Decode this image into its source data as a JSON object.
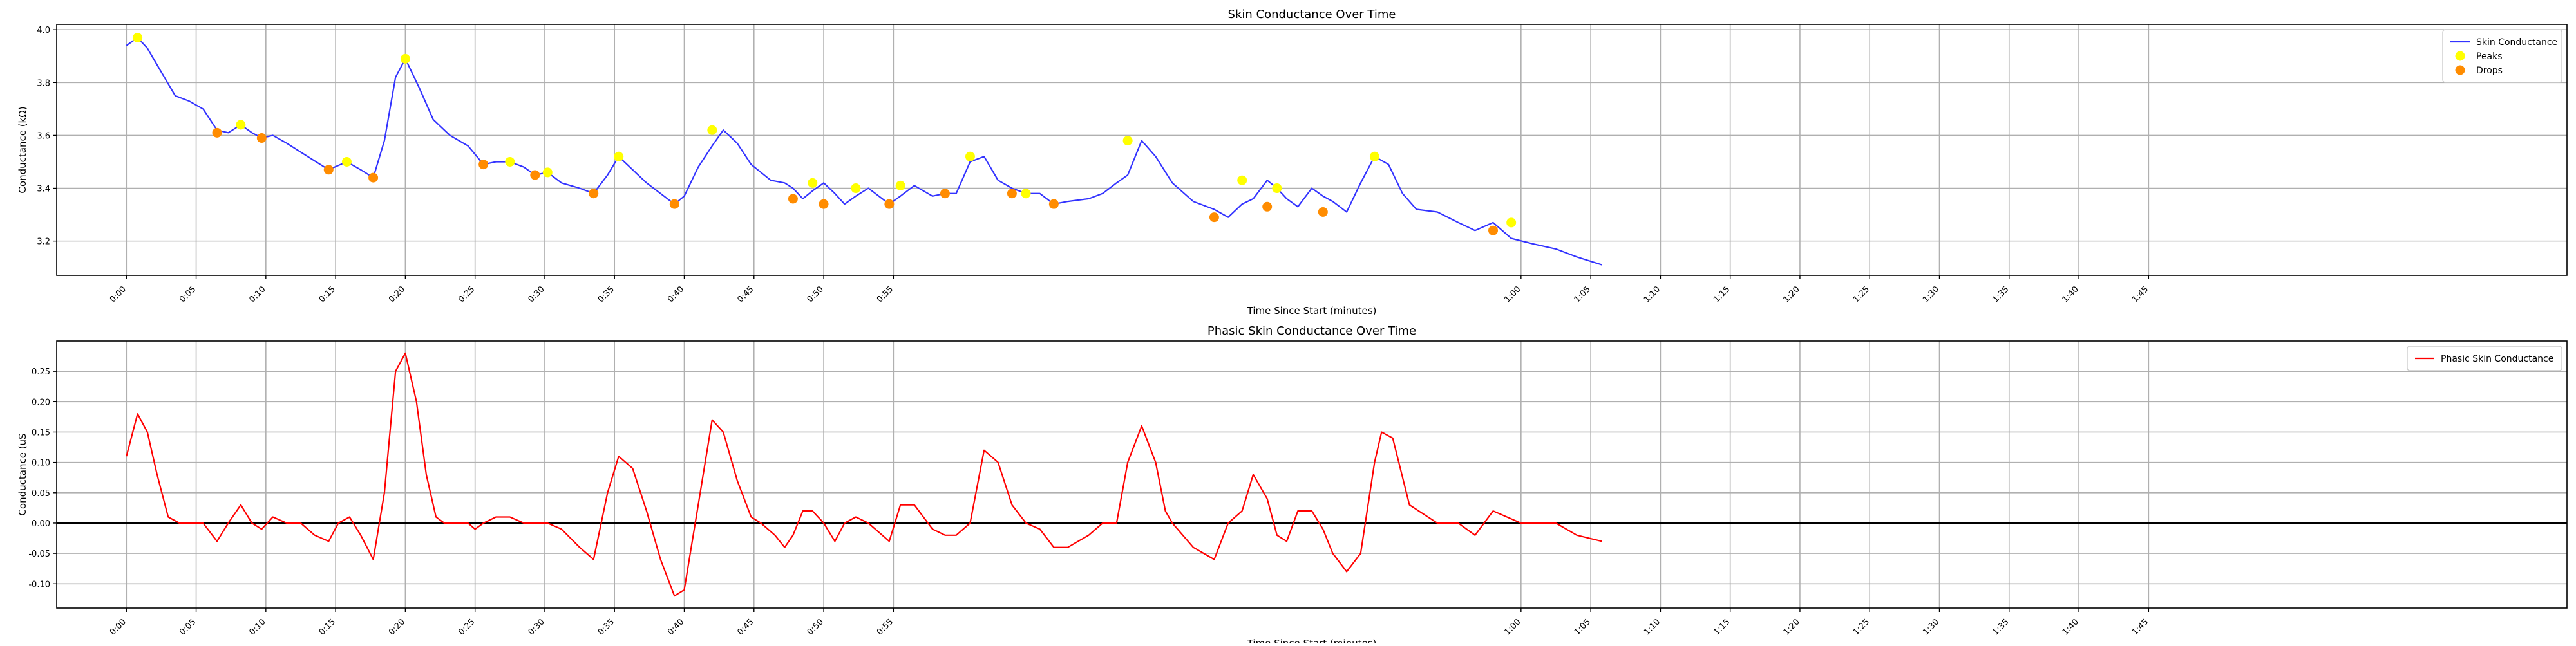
{
  "figure": {
    "background": "#ffffff"
  },
  "chart_data": [
    {
      "type": "line",
      "title": "Skin Conductance Over Time",
      "xlabel": "Time Since Start (minutes)",
      "ylabel": "Conductance (kΩ)",
      "xlim": [
        -0.05,
        1.75
      ],
      "ylim": [
        3.07,
        4.02
      ],
      "xticks": [
        0,
        0.05,
        0.1,
        0.15,
        0.2,
        0.25,
        0.3,
        0.35,
        0.4,
        0.45,
        0.5,
        0.55,
        1.0,
        1.05,
        1.1,
        1.15,
        1.2,
        1.25,
        1.3,
        1.35,
        1.4,
        1.45
      ],
      "xticklabels": [
        "0:00",
        "0:05",
        "0:10",
        "0:15",
        "0:20",
        "0:25",
        "0:30",
        "0:35",
        "0:40",
        "0:45",
        "0:50",
        "0:55",
        "1:00",
        "1:05",
        "1:10",
        "1:15",
        "1:20",
        "1:25",
        "1:30",
        "1:35",
        "1:40",
        "1:45"
      ],
      "yticks": [
        3.2,
        3.4,
        3.6,
        3.8,
        4.0
      ],
      "yticklabels": [
        "3.2",
        "3.4",
        "3.6",
        "3.8",
        "4.0"
      ],
      "grid": true,
      "legend_position": "upper right",
      "series": [
        {
          "name": "Skin Conductance",
          "kind": "line",
          "color": "#3333ff",
          "x": [
            0.0,
            0.008,
            0.015,
            0.025,
            0.035,
            0.045,
            0.055,
            0.065,
            0.073,
            0.082,
            0.09,
            0.097,
            0.105,
            0.115,
            0.13,
            0.145,
            0.158,
            0.168,
            0.177,
            0.185,
            0.193,
            0.2,
            0.21,
            0.22,
            0.232,
            0.245,
            0.256,
            0.265,
            0.275,
            0.285,
            0.293,
            0.302,
            0.312,
            0.325,
            0.335,
            0.345,
            0.353,
            0.363,
            0.373,
            0.383,
            0.393,
            0.4,
            0.41,
            0.42,
            0.428,
            0.438,
            0.448,
            0.462,
            0.472,
            0.478,
            0.485,
            0.492,
            0.5,
            0.508,
            0.515,
            0.523,
            0.532,
            0.542,
            0.547,
            0.555,
            0.565,
            0.578,
            0.587,
            0.595,
            0.605,
            0.615,
            0.625,
            0.635,
            0.645,
            0.655,
            0.665,
            0.675,
            0.69,
            0.7,
            0.71,
            0.718,
            0.728,
            0.738,
            0.75,
            0.765,
            0.78,
            0.79,
            0.8,
            0.808,
            0.818,
            0.825,
            0.832,
            0.84,
            0.85,
            0.858,
            0.865,
            0.875,
            0.885,
            0.895,
            0.905,
            0.915,
            0.925,
            0.94,
            0.955,
            0.967,
            0.98,
            0.993,
            1.008,
            1.025,
            1.04,
            1.058
          ],
          "y": [
            3.94,
            3.97,
            3.93,
            3.84,
            3.75,
            3.73,
            3.7,
            3.62,
            3.61,
            3.64,
            3.61,
            3.59,
            3.6,
            3.57,
            3.52,
            3.47,
            3.5,
            3.47,
            3.44,
            3.58,
            3.82,
            3.89,
            3.78,
            3.66,
            3.6,
            3.56,
            3.49,
            3.5,
            3.5,
            3.48,
            3.45,
            3.46,
            3.42,
            3.4,
            3.38,
            3.45,
            3.52,
            3.47,
            3.42,
            3.38,
            3.34,
            3.37,
            3.48,
            3.56,
            3.62,
            3.57,
            3.49,
            3.43,
            3.42,
            3.4,
            3.36,
            3.39,
            3.42,
            3.38,
            3.34,
            3.37,
            3.4,
            3.36,
            3.34,
            3.37,
            3.41,
            3.37,
            3.38,
            3.38,
            3.5,
            3.52,
            3.43,
            3.4,
            3.38,
            3.38,
            3.34,
            3.35,
            3.36,
            3.38,
            3.42,
            3.45,
            3.58,
            3.52,
            3.42,
            3.35,
            3.32,
            3.29,
            3.34,
            3.36,
            3.43,
            3.4,
            3.36,
            3.33,
            3.4,
            3.37,
            3.35,
            3.31,
            3.42,
            3.52,
            3.49,
            3.38,
            3.32,
            3.31,
            3.27,
            3.24,
            3.27,
            3.21,
            3.19,
            3.17,
            3.14,
            3.11
          ]
        },
        {
          "name": "Peaks",
          "kind": "scatter",
          "color": "#ffff00",
          "x": [
            0.008,
            0.082,
            0.158,
            0.2,
            0.275,
            0.302,
            0.353,
            0.42,
            0.492,
            0.523,
            0.555,
            0.605,
            0.645,
            0.718,
            0.8,
            0.825,
            0.895,
            0.993
          ],
          "y": [
            3.97,
            3.64,
            3.5,
            3.89,
            3.5,
            3.46,
            3.52,
            3.62,
            3.42,
            3.4,
            3.41,
            3.52,
            3.38,
            3.58,
            3.43,
            3.4,
            3.52,
            3.27
          ]
        },
        {
          "name": "Drops",
          "kind": "scatter",
          "color": "#ff8c00",
          "x": [
            0.065,
            0.097,
            0.145,
            0.177,
            0.256,
            0.293,
            0.335,
            0.393,
            0.478,
            0.5,
            0.547,
            0.587,
            0.635,
            0.665,
            0.78,
            0.818,
            0.858,
            0.98
          ],
          "y": [
            3.61,
            3.59,
            3.47,
            3.44,
            3.49,
            3.45,
            3.38,
            3.34,
            3.36,
            3.34,
            3.34,
            3.38,
            3.38,
            3.34,
            3.29,
            3.33,
            3.31,
            3.24
          ]
        }
      ]
    },
    {
      "type": "line",
      "title": "Phasic Skin Conductance Over Time",
      "xlabel": "Time Since Start (minutes)",
      "ylabel": "Conductance (uS",
      "xlim": [
        -0.05,
        1.75
      ],
      "ylim": [
        -0.14,
        0.3
      ],
      "xticks": [
        0,
        0.05,
        0.1,
        0.15,
        0.2,
        0.25,
        0.3,
        0.35,
        0.4,
        0.45,
        0.5,
        0.55,
        1.0,
        1.05,
        1.1,
        1.15,
        1.2,
        1.25,
        1.3,
        1.35,
        1.4,
        1.45
      ],
      "xticklabels": [
        "0:00",
        "0:05",
        "0:10",
        "0:15",
        "0:20",
        "0:25",
        "0:30",
        "0:35",
        "0:40",
        "0:45",
        "0:50",
        "0:55",
        "1:00",
        "1:05",
        "1:10",
        "1:15",
        "1:20",
        "1:25",
        "1:30",
        "1:35",
        "1:40",
        "1:45"
      ],
      "yticks": [
        -0.1,
        -0.05,
        0.0,
        0.05,
        0.1,
        0.15,
        0.2,
        0.25
      ],
      "yticklabels": [
        "-0.10",
        "-0.05",
        "0.00",
        "0.05",
        "0.10",
        "0.15",
        "0.20",
        "0.25"
      ],
      "zero_line": true,
      "grid": true,
      "legend_position": "upper right",
      "series": [
        {
          "name": "Phasic Skin Conductance",
          "kind": "line",
          "color": "#ff0000",
          "x": [
            0.0,
            0.008,
            0.015,
            0.022,
            0.03,
            0.038,
            0.045,
            0.055,
            0.065,
            0.073,
            0.082,
            0.09,
            0.097,
            0.105,
            0.115,
            0.125,
            0.135,
            0.145,
            0.152,
            0.16,
            0.168,
            0.177,
            0.185,
            0.193,
            0.2,
            0.208,
            0.215,
            0.222,
            0.228,
            0.245,
            0.25,
            0.256,
            0.265,
            0.275,
            0.285,
            0.293,
            0.302,
            0.312,
            0.325,
            0.335,
            0.345,
            0.353,
            0.363,
            0.373,
            0.383,
            0.393,
            0.4,
            0.41,
            0.42,
            0.428,
            0.438,
            0.448,
            0.455,
            0.465,
            0.472,
            0.478,
            0.485,
            0.492,
            0.5,
            0.508,
            0.515,
            0.523,
            0.532,
            0.542,
            0.547,
            0.555,
            0.565,
            0.578,
            0.587,
            0.595,
            0.605,
            0.615,
            0.625,
            0.635,
            0.645,
            0.655,
            0.665,
            0.675,
            0.69,
            0.7,
            0.71,
            0.718,
            0.728,
            0.738,
            0.745,
            0.75,
            0.765,
            0.78,
            0.79,
            0.8,
            0.808,
            0.818,
            0.825,
            0.832,
            0.84,
            0.85,
            0.858,
            0.865,
            0.875,
            0.885,
            0.895,
            0.9,
            0.908,
            0.92,
            0.94,
            0.955,
            0.967,
            0.98,
            1.0,
            1.025,
            1.04,
            1.058
          ],
          "y": [
            0.11,
            0.18,
            0.15,
            0.08,
            0.01,
            0.0,
            0.0,
            0.0,
            -0.03,
            0.0,
            0.03,
            0.0,
            -0.01,
            0.01,
            0.0,
            0.0,
            -0.02,
            -0.03,
            0.0,
            0.01,
            -0.02,
            -0.06,
            0.05,
            0.25,
            0.28,
            0.2,
            0.08,
            0.01,
            0.0,
            0.0,
            -0.01,
            0.0,
            0.01,
            0.01,
            0.0,
            0.0,
            0.0,
            -0.01,
            -0.04,
            -0.06,
            0.05,
            0.11,
            0.09,
            0.02,
            -0.06,
            -0.12,
            -0.11,
            0.03,
            0.17,
            0.15,
            0.07,
            0.01,
            0.0,
            -0.02,
            -0.04,
            -0.02,
            0.02,
            0.02,
            0.0,
            -0.03,
            0.0,
            0.01,
            0.0,
            -0.02,
            -0.03,
            0.03,
            0.03,
            -0.01,
            -0.02,
            -0.02,
            0.0,
            0.12,
            0.1,
            0.03,
            0.0,
            -0.01,
            -0.04,
            -0.04,
            -0.02,
            0.0,
            0.0,
            0.1,
            0.16,
            0.1,
            0.02,
            0.0,
            -0.04,
            -0.06,
            0.0,
            0.02,
            0.08,
            0.04,
            -0.02,
            -0.03,
            0.02,
            0.02,
            -0.01,
            -0.05,
            -0.08,
            -0.05,
            0.1,
            0.15,
            0.14,
            0.03,
            0.0,
            0.0,
            -0.02,
            0.02,
            0.0,
            0.0,
            -0.02,
            -0.03
          ]
        }
      ]
    }
  ]
}
